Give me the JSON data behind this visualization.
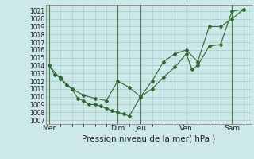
{
  "background_color": "#cce8e8",
  "grid_color": "#aacfcf",
  "line_color": "#2d6a2d",
  "vline_color": "#4a7a4a",
  "ylim": [
    1006.5,
    1021.8
  ],
  "yticks": [
    1007,
    1008,
    1009,
    1010,
    1011,
    1012,
    1013,
    1014,
    1015,
    1016,
    1017,
    1018,
    1019,
    1020,
    1021
  ],
  "xlim": [
    -0.3,
    17.7
  ],
  "day_labels": [
    "Mer",
    "Dim",
    "Jeu",
    "Ven",
    "Sam"
  ],
  "day_positions": [
    0,
    6,
    8,
    12,
    16
  ],
  "series1_x": [
    0,
    0.5,
    1,
    1.5,
    2,
    2.5,
    3,
    3.5,
    4,
    4.5,
    5,
    5.5,
    6,
    6.5,
    7,
    8,
    9,
    10,
    11,
    12,
    12.5,
    13,
    14,
    15,
    16,
    17
  ],
  "series1_y": [
    1014.0,
    1012.8,
    1012.5,
    1011.5,
    1011.0,
    1009.8,
    1009.5,
    1009.0,
    1009.0,
    1008.8,
    1008.5,
    1008.2,
    1008.0,
    1007.8,
    1007.5,
    1010.0,
    1011.0,
    1012.5,
    1013.8,
    1015.5,
    1013.5,
    1014.0,
    1016.5,
    1016.7,
    1021.0,
    1021.2
  ],
  "series2_x": [
    0,
    1,
    2,
    3,
    4,
    5,
    6,
    7,
    8,
    9,
    10,
    11,
    12,
    13,
    14,
    15,
    16,
    17
  ],
  "series2_y": [
    1014.0,
    1012.3,
    1011.0,
    1010.2,
    1009.8,
    1009.5,
    1012.0,
    1011.2,
    1010.0,
    1012.0,
    1014.5,
    1015.5,
    1016.0,
    1014.5,
    1019.0,
    1019.0,
    1020.0,
    1021.2
  ],
  "xlabel": "Pression niveau de la mer( hPa )",
  "xlabel_fontsize": 7.5,
  "ytick_fontsize": 5.5,
  "xtick_fontsize": 6.5
}
